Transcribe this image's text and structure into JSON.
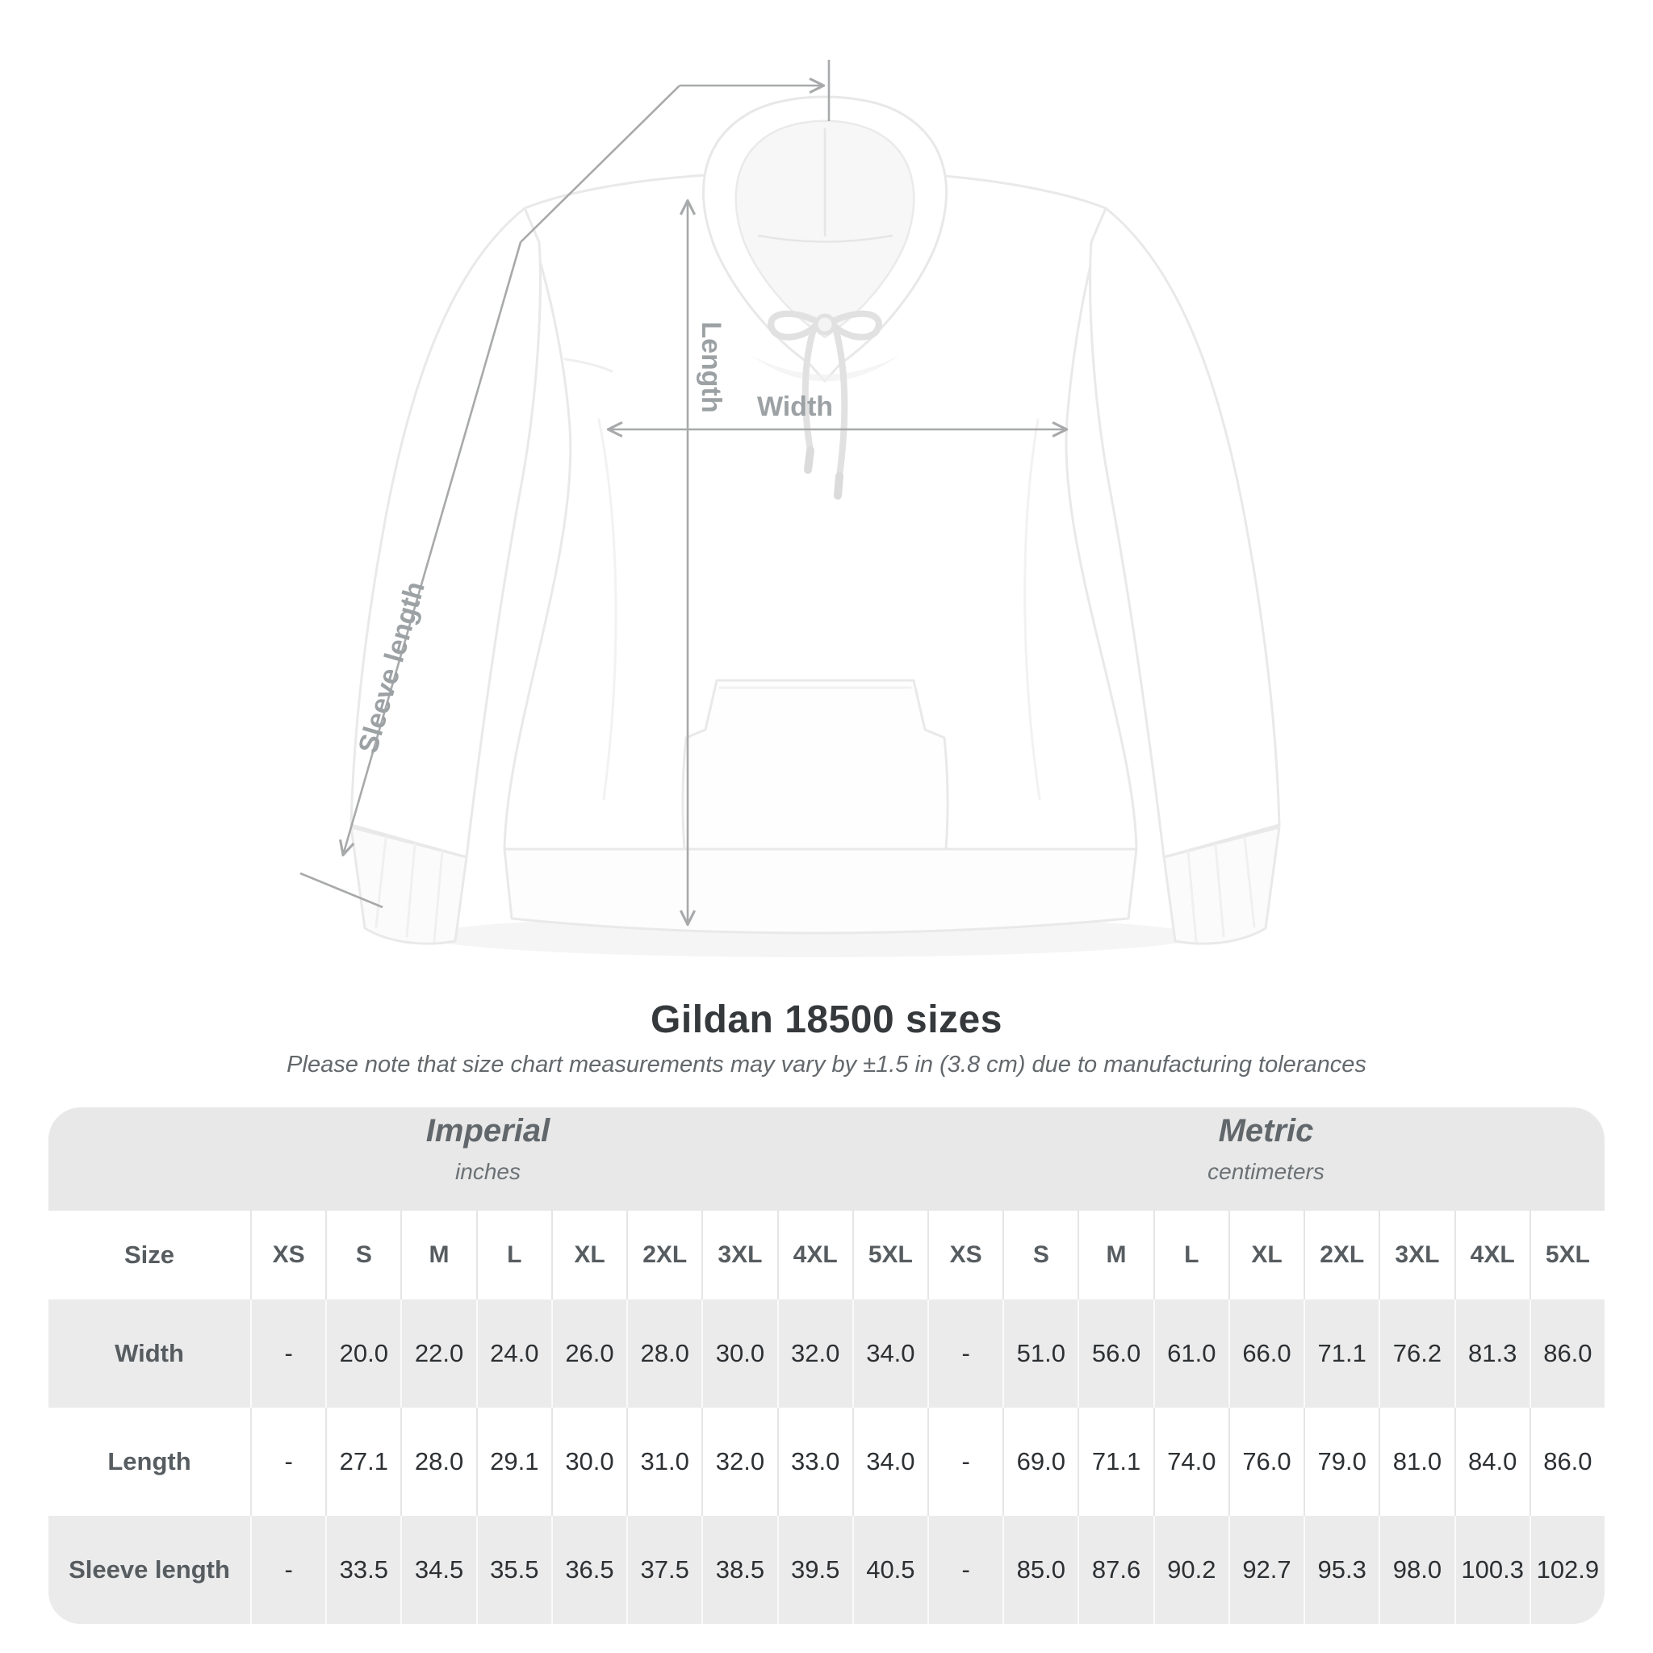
{
  "title": "Gildan 18500 sizes",
  "subtitle": "Please note that size chart measurements may vary by ±1.5 in (3.8 cm) due to manufacturing tolerances",
  "diagram": {
    "garment": "white pullover hoodie, front view",
    "labels": {
      "sleeve_length": "Sleeve length",
      "length": "Length",
      "width": "Width"
    },
    "colors": {
      "annotation_line": "#a7a9aa",
      "annotation_text": "#9ca1a4",
      "garment_outline": "#e7e7e7",
      "garment_fill": "#ffffff"
    }
  },
  "table": {
    "corner_label": "Size",
    "unit_groups": [
      {
        "label": "Imperial",
        "sublabel": "inches"
      },
      {
        "label": "Metric",
        "sublabel": "centimeters"
      }
    ],
    "size_columns": [
      "XS",
      "S",
      "M",
      "L",
      "XL",
      "2XL",
      "3XL",
      "4XL",
      "5XL",
      "XS",
      "S",
      "M",
      "L",
      "XL",
      "2XL",
      "3XL",
      "4XL",
      "5XL"
    ],
    "rows": [
      {
        "label": "Width",
        "values": [
          "-",
          "20.0",
          "22.0",
          "24.0",
          "26.0",
          "28.0",
          "30.0",
          "32.0",
          "34.0",
          "-",
          "51.0",
          "56.0",
          "61.0",
          "66.0",
          "71.1",
          "76.2",
          "81.3",
          "86.0"
        ]
      },
      {
        "label": "Length",
        "values": [
          "-",
          "27.1",
          "28.0",
          "29.1",
          "30.0",
          "31.0",
          "32.0",
          "33.0",
          "34.0",
          "-",
          "69.0",
          "71.1",
          "74.0",
          "76.0",
          "79.0",
          "81.0",
          "84.0",
          "86.0"
        ]
      },
      {
        "label": "Sleeve length",
        "values": [
          "-",
          "33.5",
          "34.5",
          "35.5",
          "36.5",
          "37.5",
          "38.5",
          "39.5",
          "40.5",
          "-",
          "85.0",
          "87.6",
          "90.2",
          "92.7",
          "95.3",
          "98.0",
          "100.3",
          "102.9"
        ]
      }
    ],
    "colors": {
      "band_gray": "#e8e8e8",
      "row_gray": "#ebebeb",
      "header_text": "#565c60",
      "value_text": "#2d3033"
    }
  }
}
